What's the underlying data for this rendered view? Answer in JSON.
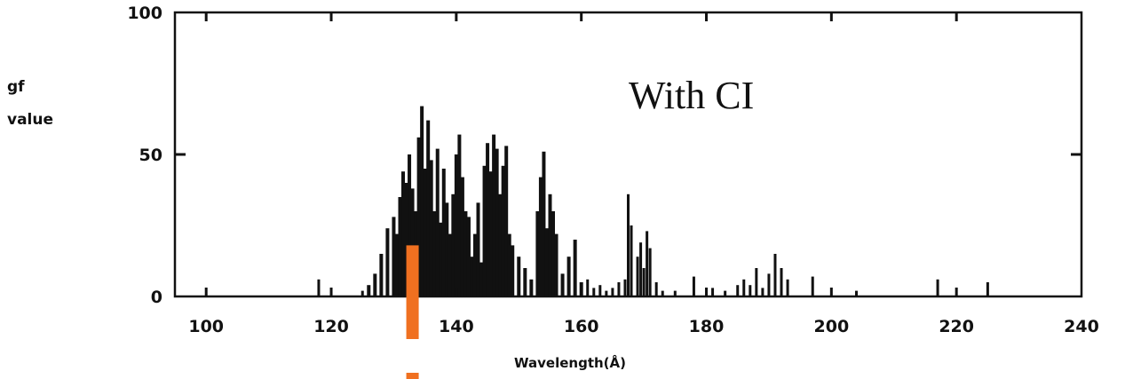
{
  "chart_data": {
    "type": "bar",
    "title": "",
    "annotation": "With CI",
    "ylabel_lines": [
      "gf",
      "value"
    ],
    "xlabel": "Wavelength(Å)",
    "xlim": [
      95,
      240
    ],
    "ylim": [
      0,
      100
    ],
    "xticks": [
      100,
      120,
      140,
      160,
      180,
      200,
      220,
      240
    ],
    "yticks": [
      0,
      50,
      100
    ],
    "bar_color": "#111111",
    "marker": {
      "x": 133,
      "y_top": 18,
      "color": "#f07020"
    },
    "x": [
      118,
      125,
      126,
      127,
      128,
      129,
      130,
      130.5,
      131,
      131.5,
      132,
      132.5,
      133,
      133.5,
      134,
      134.5,
      135,
      135.5,
      136,
      136.5,
      137,
      137.5,
      138,
      138.5,
      139,
      139.5,
      140,
      140.5,
      141,
      141.5,
      142,
      142.5,
      143,
      143.5,
      144,
      144.5,
      145,
      145.5,
      146,
      146.5,
      147,
      147.5,
      148,
      148.5,
      149,
      150,
      151,
      152,
      153,
      153.5,
      154,
      154.5,
      155,
      155.5,
      156,
      157,
      158,
      159,
      160,
      161,
      162,
      163,
      164,
      165,
      166,
      167,
      167.5,
      168,
      169,
      169.5,
      170,
      170.5,
      171,
      172,
      173,
      175,
      178,
      181,
      183,
      185,
      186,
      187,
      188,
      189,
      190,
      191,
      192,
      193,
      197,
      204,
      217,
      225
    ],
    "values": [
      6,
      2,
      4,
      8,
      15,
      24,
      28,
      22,
      35,
      44,
      40,
      50,
      38,
      30,
      56,
      67,
      45,
      62,
      48,
      30,
      52,
      26,
      45,
      33,
      22,
      36,
      50,
      57,
      42,
      30,
      28,
      14,
      22,
      33,
      12,
      46,
      54,
      44,
      57,
      52,
      36,
      46,
      53,
      22,
      18,
      14,
      10,
      6,
      30,
      42,
      51,
      24,
      36,
      30,
      22,
      8,
      14,
      20,
      5,
      6,
      3,
      4,
      2,
      3,
      5,
      6,
      36,
      25,
      14,
      19,
      10,
      23,
      17,
      5,
      2,
      2,
      7,
      3,
      2,
      4,
      6,
      4,
      10,
      3,
      8,
      15,
      10,
      6,
      7,
      2,
      6,
      5
    ]
  }
}
